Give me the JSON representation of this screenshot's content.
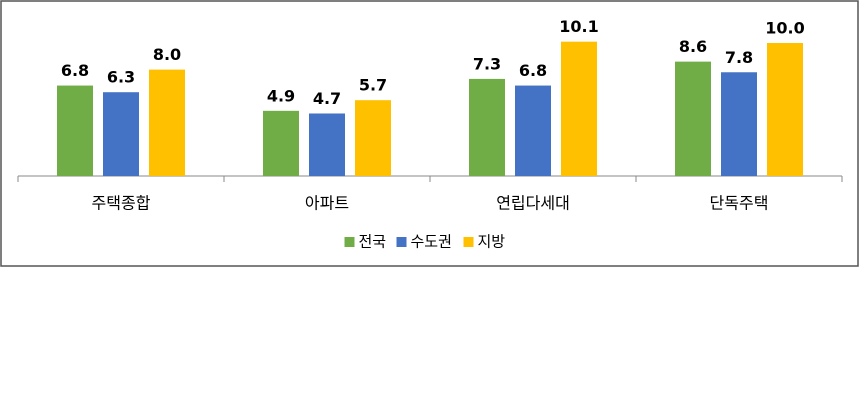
{
  "chart_data": {
    "type": "bar",
    "categories": [
      "주택종합",
      "아파트",
      "연립다세대",
      "단독주택"
    ],
    "series": [
      {
        "name": "전국",
        "color": "#70ad47",
        "values": [
          6.8,
          4.9,
          7.3,
          8.6
        ],
        "value_labels": [
          "6.8",
          "4.9",
          "7.3",
          "8.6"
        ]
      },
      {
        "name": "수도권",
        "color": "#4472c4",
        "values": [
          6.3,
          4.7,
          6.8,
          7.8
        ],
        "value_labels": [
          "6.3",
          "4.7",
          "6.8",
          "7.8"
        ]
      },
      {
        "name": "지방",
        "color": "#ffc000",
        "values": [
          8,
          5.7,
          10.1,
          10
        ],
        "value_labels": [
          "8.0",
          "5.7",
          "10.1",
          "10.0"
        ]
      }
    ],
    "legend": "bottom"
  }
}
